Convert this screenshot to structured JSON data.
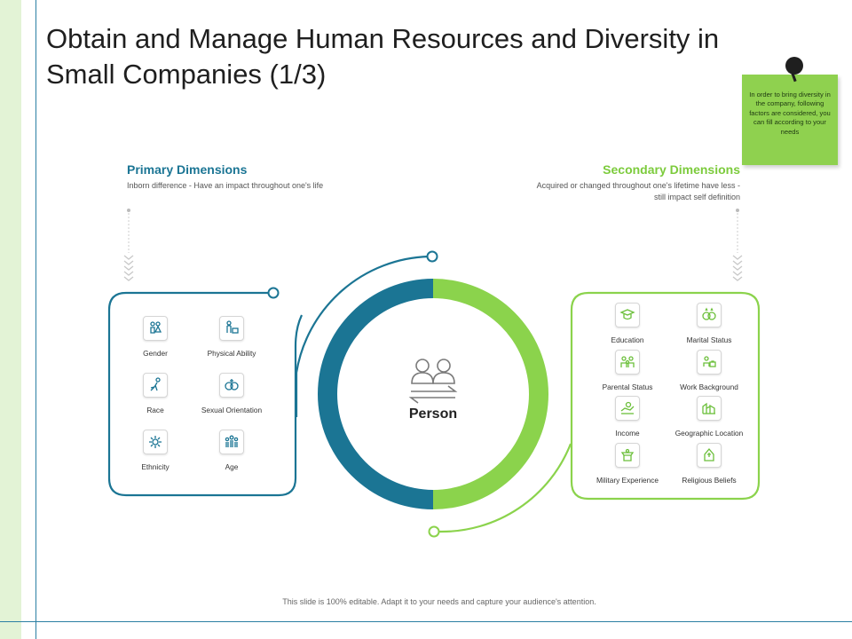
{
  "title": "Obtain and Manage Human Resources and Diversity in Small Companies (1/3)",
  "note": {
    "text": "In order to bring diversity in the company, following factors are considered, you can fill according to your needs"
  },
  "primary": {
    "title": "Primary Dimensions",
    "description": "Inborn difference - Have an impact throughout one's life",
    "items": [
      {
        "label": "Gender",
        "icon": "gender-icon"
      },
      {
        "label": "Physical Ability",
        "icon": "physical-ability-icon"
      },
      {
        "label": "Race",
        "icon": "race-icon"
      },
      {
        "label": "Sexual Orientation",
        "icon": "sexual-orientation-icon"
      },
      {
        "label": "Ethnicity",
        "icon": "ethnicity-icon"
      },
      {
        "label": "Age",
        "icon": "age-icon"
      }
    ]
  },
  "secondary": {
    "title": "Secondary Dimensions",
    "description": "Acquired or changed throughout one's lifetime have less - still impact self definition",
    "items": [
      {
        "label": "Education",
        "icon": "education-icon"
      },
      {
        "label": "Marital Status",
        "icon": "marital-status-icon"
      },
      {
        "label": "Parental Status",
        "icon": "parental-status-icon"
      },
      {
        "label": "Work Background",
        "icon": "work-background-icon"
      },
      {
        "label": "Income",
        "icon": "income-icon"
      },
      {
        "label": "Geographic Location",
        "icon": "geographic-location-icon"
      },
      {
        "label": "Military Experience",
        "icon": "military-experience-icon"
      },
      {
        "label": "Religious Beliefs",
        "icon": "religious-beliefs-icon"
      }
    ]
  },
  "center": {
    "label": "Person",
    "icon": "people-exchange-icon"
  },
  "footer": "This slide is 100% editable. Adapt it to your needs and capture your audience's attention.",
  "colors": {
    "teal": "#1b7594",
    "green": "#8bd34c",
    "light_green": "#e3f3d6"
  }
}
